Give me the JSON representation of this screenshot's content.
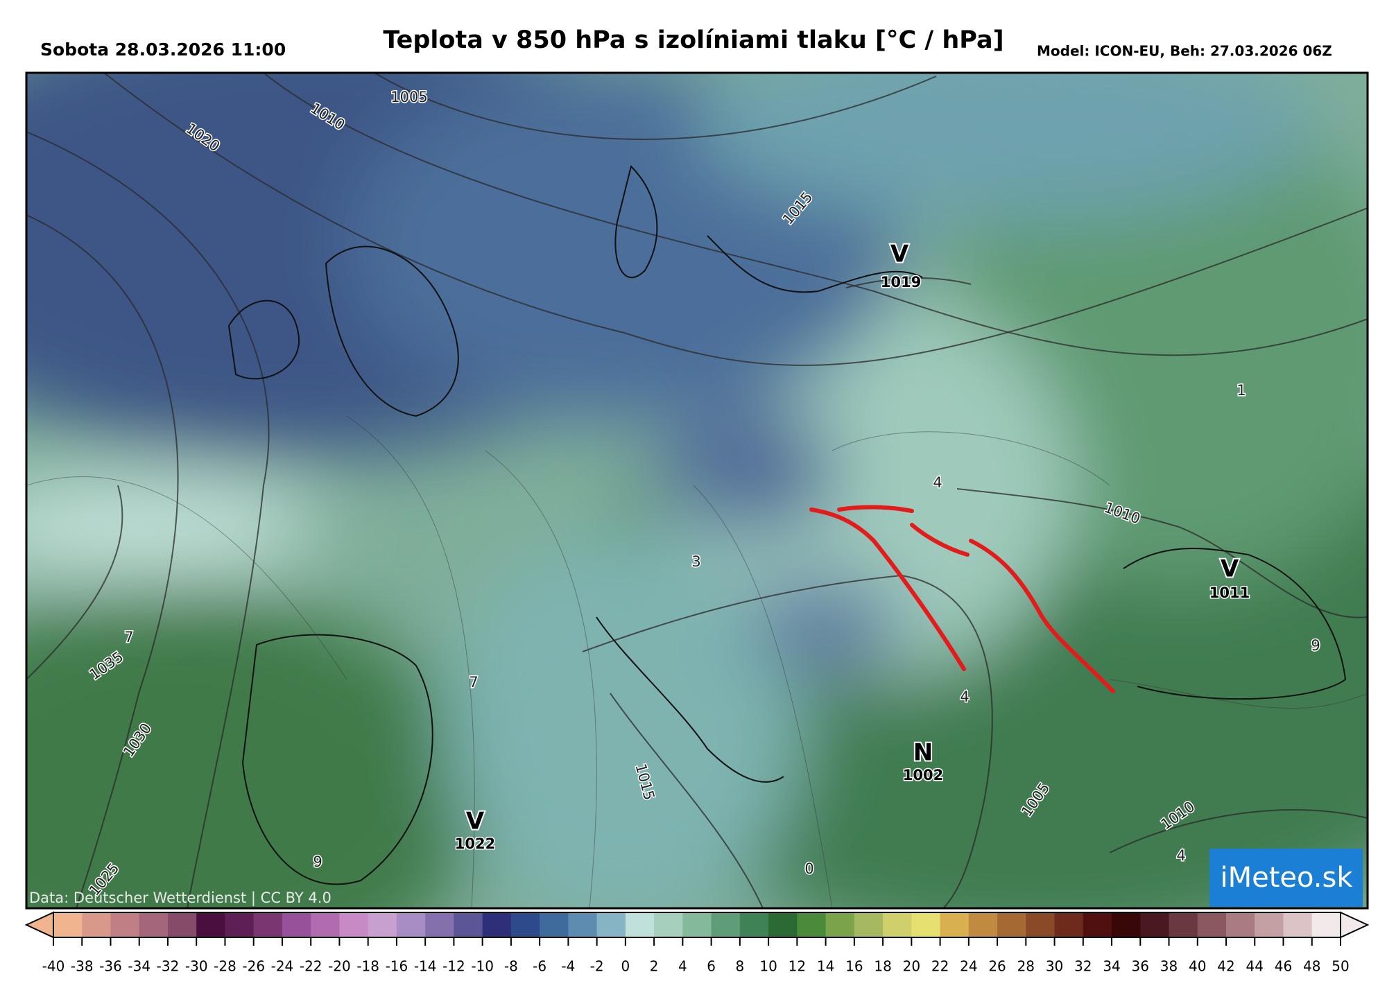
{
  "header": {
    "left": "Sobota 28.03.2026 11:00",
    "title": "Teplota v 850 hPa s izolíniami tlaku [°C / hPa]",
    "right": "Model: ICON-EU, Beh: 27.03.2026 06Z"
  },
  "map": {
    "labels": [
      "1005",
      "1010",
      "1020",
      "1015",
      "V",
      "1019",
      "1",
      "4",
      "1010",
      "V",
      "1011",
      "3",
      "7",
      "1035",
      "7",
      "9",
      "4",
      "1030",
      "1015",
      "N",
      "1002",
      "1005",
      "1010",
      "V",
      "1022",
      "0",
      "9",
      "4",
      "1025"
    ],
    "credit": "Data: Deutscher Wetterdienst | CC BY 4.0",
    "logo": "iMeteo.sk"
  },
  "colorbar": {
    "ticks": [
      -40,
      -38,
      -36,
      -34,
      -32,
      -30,
      -28,
      -26,
      -24,
      -22,
      -20,
      -18,
      -16,
      -14,
      -12,
      -10,
      -8,
      -6,
      -4,
      -2,
      0,
      2,
      4,
      6,
      8,
      10,
      12,
      14,
      16,
      18,
      20,
      22,
      24,
      26,
      28,
      30,
      32,
      34,
      36,
      38,
      40,
      42,
      44,
      46,
      48,
      50
    ],
    "colors": [
      "#f0b48e",
      "#d8998a",
      "#bf7f85",
      "#a4667a",
      "#864b69",
      "#4a0f3e",
      "#5e1f56",
      "#7a3670",
      "#97509a",
      "#b06cae",
      "#c88ac4",
      "#c7a0d0",
      "#a88cc4",
      "#8370ac",
      "#5c5596",
      "#2e2f78",
      "#2d4a8a",
      "#3e6a9c",
      "#5d8cb0",
      "#86b4c4",
      "#c0e0dc",
      "#a7cfbd",
      "#84b99c",
      "#5f9d78",
      "#3e8256",
      "#2c6a34",
      "#4a8a3a",
      "#7aa34a",
      "#a6b860",
      "#cfd06c",
      "#e6e070",
      "#d8b050",
      "#c08a40",
      "#a56a34",
      "#8a4a28",
      "#6e2a1c",
      "#501010",
      "#380808",
      "#4a1820",
      "#6a3840",
      "#8c5860",
      "#a87c80",
      "#c4a0a4",
      "#dcc4c6",
      "#f2eaea"
    ]
  }
}
